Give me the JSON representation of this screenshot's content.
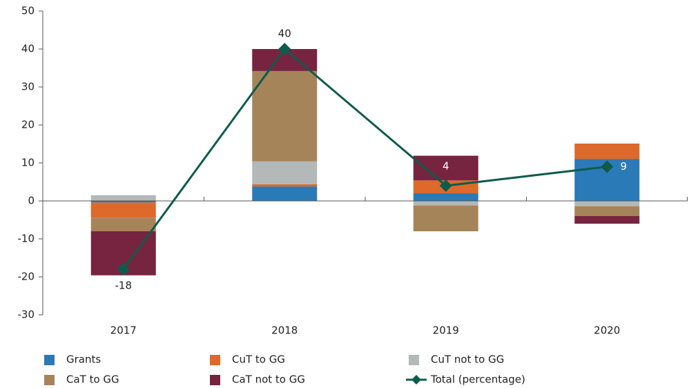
{
  "chart_data": {
    "type": "bar",
    "stacked": true,
    "categories": [
      "2017",
      "2018",
      "2019",
      "2020"
    ],
    "series": [
      {
        "name": "Grants",
        "color": "#2a7ab8",
        "values": [
          -0.4,
          3.8,
          2,
          11
        ]
      },
      {
        "name": "CuT to GG",
        "color": "#dd6a2b",
        "values": [
          -4,
          0.6,
          3.4,
          4.1
        ]
      },
      {
        "name": "CuT not to GG",
        "color": "#b3b8b9",
        "values": [
          1.5,
          6,
          -1.2,
          -1.4
        ]
      },
      {
        "name": "CaT to GG",
        "color": "#a6845a",
        "values": [
          -3.6,
          23.8,
          -6.8,
          -2.6
        ]
      },
      {
        "name": "CaT not to GG",
        "color": "#76243f",
        "values": [
          -11.6,
          5.8,
          6.5,
          -2
        ]
      },
      {
        "name": "Total (percentage)",
        "type": "line",
        "color": "#0e5b4c",
        "values": [
          -18,
          40,
          4,
          9
        ]
      }
    ],
    "ylim": [
      -30,
      50
    ],
    "yticks": [
      -30,
      -20,
      -10,
      0,
      10,
      20,
      30,
      40,
      50
    ],
    "grid": false
  }
}
